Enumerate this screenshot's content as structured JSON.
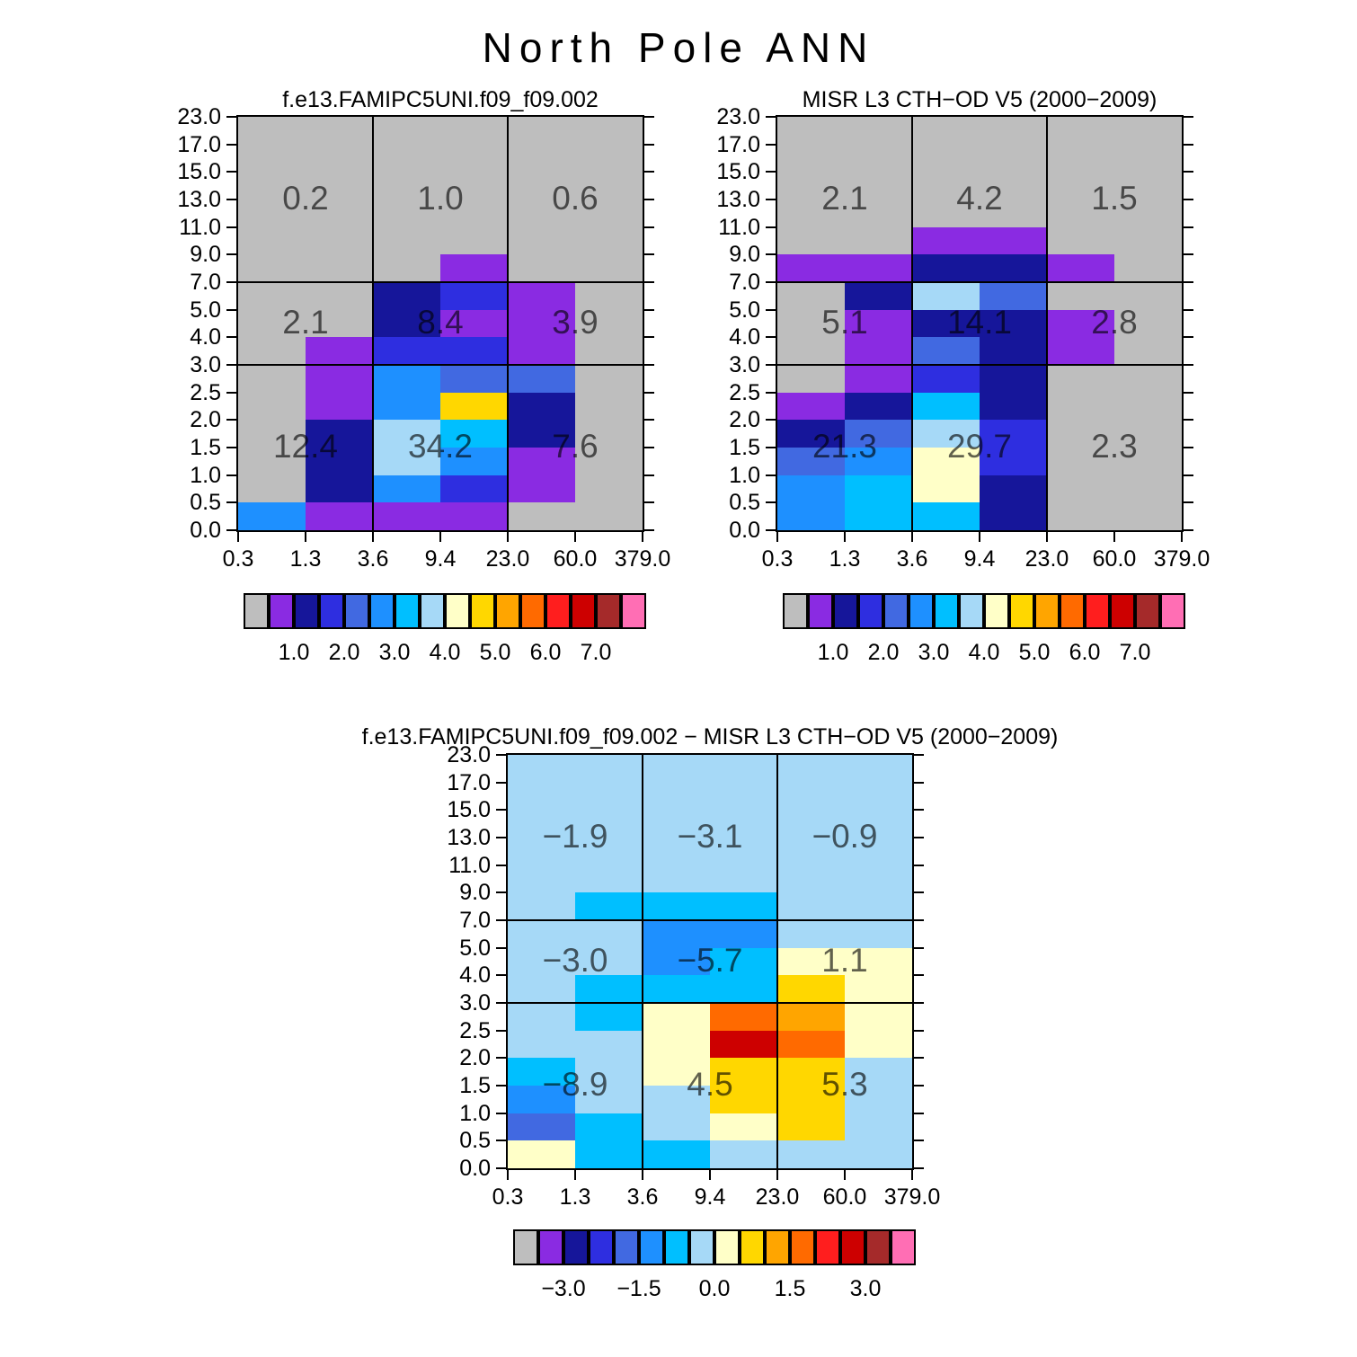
{
  "main_title": "North Pole ANN",
  "palette": {
    "color_names": [
      "gray",
      "purple",
      "dark-navy",
      "blue",
      "royal-blue",
      "dodger-blue",
      "deep-sky-blue",
      "light-blue",
      "pale-yellow",
      "gold",
      "orange",
      "dark-orange",
      "red",
      "dark-red",
      "brown",
      "pink"
    ],
    "colors": [
      "#bebebe",
      "#8a2be2",
      "#16169a",
      "#2e2ee0",
      "#4169e1",
      "#1e90ff",
      "#00bfff",
      "#a6d9f7",
      "#ffffc8",
      "#ffd700",
      "#ffa500",
      "#ff6a00",
      "#ff1e1e",
      "#cd0000",
      "#a52a2a",
      "#ff6eb4"
    ]
  },
  "regions": {
    "x_edges": [
      "0.3",
      "3.6",
      "23.0",
      "379.0"
    ],
    "y_edges": [
      "0.0",
      "3.0",
      "7.0",
      "23.0"
    ]
  },
  "chart_data": [
    {
      "type": "heatmap",
      "title": "f.e13.FAMIPC5UNI.f09_f09.002",
      "x_ticks": [
        "0.3",
        "1.3",
        "3.6",
        "9.4",
        "23.0",
        "60.0",
        "379.0"
      ],
      "y_ticks": [
        "23.0",
        "17.0",
        "15.0",
        "13.0",
        "11.0",
        "9.0",
        "7.0",
        "5.0",
        "4.0",
        "3.0",
        "2.5",
        "2.0",
        "1.5",
        "1.0",
        "0.5",
        "0.0"
      ],
      "region_values": [
        [
          "0.2",
          "1.0",
          "0.6"
        ],
        [
          "2.1",
          "8.4",
          "3.9"
        ],
        [
          "12.4",
          "34.2",
          "7.6"
        ]
      ],
      "cells_color_index": [
        [
          0,
          0,
          0,
          0,
          0,
          0
        ],
        [
          0,
          0,
          0,
          0,
          0,
          0
        ],
        [
          0,
          0,
          0,
          0,
          0,
          0
        ],
        [
          0,
          0,
          0,
          0,
          0,
          0
        ],
        [
          0,
          0,
          0,
          0,
          0,
          0
        ],
        [
          0,
          0,
          0,
          1,
          0,
          0
        ],
        [
          0,
          0,
          2,
          3,
          1,
          0
        ],
        [
          0,
          0,
          2,
          1,
          1,
          0
        ],
        [
          0,
          1,
          3,
          3,
          1,
          0
        ],
        [
          0,
          1,
          5,
          4,
          4,
          0
        ],
        [
          0,
          1,
          5,
          9,
          2,
          0
        ],
        [
          0,
          2,
          7,
          6,
          2,
          0
        ],
        [
          0,
          2,
          7,
          5,
          1,
          0
        ],
        [
          0,
          2,
          5,
          3,
          1,
          0
        ],
        [
          5,
          1,
          1,
          1,
          0,
          0
        ]
      ],
      "colorbar": {
        "labels": [
          "1.0",
          "2.0",
          "3.0",
          "4.0",
          "5.0",
          "6.0",
          "7.0"
        ],
        "tick_boundary_indices": [
          2,
          4,
          6,
          8,
          10,
          12,
          14
        ]
      }
    },
    {
      "type": "heatmap",
      "title": "MISR L3 CTH−OD V5 (2000−2009)",
      "x_ticks": [
        "0.3",
        "1.3",
        "3.6",
        "9.4",
        "23.0",
        "60.0",
        "379.0"
      ],
      "y_ticks": [
        "23.0",
        "17.0",
        "15.0",
        "13.0",
        "11.0",
        "9.0",
        "7.0",
        "5.0",
        "4.0",
        "3.0",
        "2.5",
        "2.0",
        "1.5",
        "1.0",
        "0.5",
        "0.0"
      ],
      "region_values": [
        [
          "2.1",
          "4.2",
          "1.5"
        ],
        [
          "5.1",
          "14.1",
          "2.8"
        ],
        [
          "21.3",
          "29.7",
          "2.3"
        ]
      ],
      "cells_color_index": [
        [
          0,
          0,
          0,
          0,
          0,
          0
        ],
        [
          0,
          0,
          0,
          0,
          0,
          0
        ],
        [
          0,
          0,
          0,
          0,
          0,
          0
        ],
        [
          0,
          0,
          0,
          0,
          0,
          0
        ],
        [
          0,
          0,
          1,
          1,
          0,
          0
        ],
        [
          1,
          1,
          2,
          2,
          1,
          0
        ],
        [
          0,
          2,
          7,
          4,
          0,
          0
        ],
        [
          0,
          1,
          2,
          2,
          1,
          0
        ],
        [
          0,
          1,
          4,
          2,
          1,
          0
        ],
        [
          0,
          1,
          3,
          2,
          0,
          0
        ],
        [
          1,
          2,
          6,
          2,
          0,
          0
        ],
        [
          2,
          4,
          7,
          3,
          0,
          0
        ],
        [
          4,
          5,
          8,
          3,
          0,
          0
        ],
        [
          5,
          6,
          8,
          2,
          0,
          0
        ],
        [
          5,
          6,
          6,
          2,
          0,
          0
        ]
      ],
      "colorbar": {
        "labels": [
          "1.0",
          "2.0",
          "3.0",
          "4.0",
          "5.0",
          "6.0",
          "7.0"
        ],
        "tick_boundary_indices": [
          2,
          4,
          6,
          8,
          10,
          12,
          14
        ]
      }
    },
    {
      "type": "heatmap",
      "title": "f.e13.FAMIPC5UNI.f09_f09.002 − MISR L3 CTH−OD V5 (2000−2009)",
      "x_ticks": [
        "0.3",
        "1.3",
        "3.6",
        "9.4",
        "23.0",
        "60.0",
        "379.0"
      ],
      "y_ticks": [
        "23.0",
        "17.0",
        "15.0",
        "13.0",
        "11.0",
        "9.0",
        "7.0",
        "5.0",
        "4.0",
        "3.0",
        "2.5",
        "2.0",
        "1.5",
        "1.0",
        "0.5",
        "0.0"
      ],
      "region_values": [
        [
          "−1.9",
          "−3.1",
          "−0.9"
        ],
        [
          "−3.0",
          "−5.7",
          "1.1"
        ],
        [
          "−8.9",
          "4.5",
          "5.3"
        ]
      ],
      "cells_color_index": [
        [
          7,
          7,
          7,
          7,
          7,
          7
        ],
        [
          7,
          7,
          7,
          7,
          7,
          7
        ],
        [
          7,
          7,
          7,
          7,
          7,
          7
        ],
        [
          7,
          7,
          7,
          7,
          7,
          7
        ],
        [
          7,
          7,
          7,
          7,
          7,
          7
        ],
        [
          7,
          6,
          6,
          6,
          7,
          7
        ],
        [
          7,
          7,
          5,
          5,
          7,
          7
        ],
        [
          7,
          7,
          5,
          6,
          8,
          8
        ],
        [
          7,
          6,
          6,
          6,
          9,
          8
        ],
        [
          7,
          6,
          8,
          11,
          10,
          8
        ],
        [
          7,
          7,
          8,
          13,
          11,
          8
        ],
        [
          6,
          7,
          8,
          9,
          9,
          7
        ],
        [
          5,
          7,
          7,
          9,
          9,
          7
        ],
        [
          4,
          6,
          7,
          8,
          9,
          7
        ],
        [
          8,
          6,
          6,
          7,
          7,
          7
        ]
      ],
      "colorbar": {
        "labels": [
          "−3.0",
          "−1.5",
          "0.0",
          "1.5",
          "3.0"
        ],
        "tick_boundary_indices": [
          2,
          5,
          8,
          11,
          14
        ]
      }
    }
  ]
}
